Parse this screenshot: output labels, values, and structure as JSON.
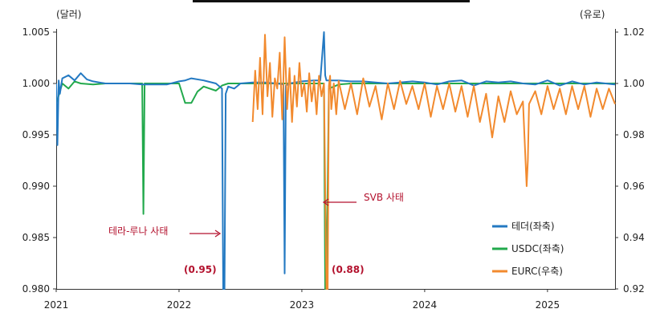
{
  "chart_data": {
    "type": "line",
    "left_unit": "(달러)",
    "right_unit": "(유로)",
    "xlim": [
      2021.0,
      2025.55
    ],
    "x_ticks": [
      "2021",
      "2022",
      "2023",
      "2024",
      "2025"
    ],
    "y_left": {
      "ylim": [
        0.98,
        1.005
      ],
      "ticks": [
        "0.980",
        "0.985",
        "0.990",
        "0.995",
        "1.000",
        "1.005"
      ]
    },
    "y_right": {
      "ylim": [
        0.92,
        1.02
      ],
      "ticks": [
        "0.92",
        "0.94",
        "0.96",
        "0.98",
        "1.00",
        "1.02"
      ]
    },
    "grid": false,
    "legend_position": "bottom-right",
    "series": [
      {
        "name": "테더(좌축)",
        "axis": "left",
        "color": "#2379c2",
        "x": [
          2021.0,
          2021.01,
          2021.02,
          2021.03,
          2021.05,
          2021.1,
          2021.15,
          2021.2,
          2021.25,
          2021.3,
          2021.4,
          2021.5,
          2021.6,
          2021.7,
          2021.8,
          2021.9,
          2022.0,
          2022.05,
          2022.1,
          2022.2,
          2022.3,
          2022.35,
          2022.36,
          2022.37,
          2022.38,
          2022.4,
          2022.45,
          2022.5,
          2022.6,
          2022.7,
          2022.8,
          2022.85,
          2022.86,
          2022.87,
          2022.9,
          2023.0,
          2023.1,
          2023.15,
          2023.18,
          2023.19,
          2023.2,
          2023.3,
          2023.4,
          2023.5,
          2023.6,
          2023.7,
          2023.8,
          2023.9,
          2024.0,
          2024.1,
          2024.2,
          2024.3,
          2024.4,
          2024.5,
          2024.6,
          2024.7,
          2024.8,
          2024.9,
          2025.0,
          2025.1,
          2025.2,
          2025.3,
          2025.4,
          2025.55
        ],
        "y": [
          1.0,
          0.994,
          1.0003,
          0.999,
          1.0005,
          1.0008,
          1.0003,
          1.001,
          1.0004,
          1.0002,
          1.0,
          1.0,
          1.0,
          0.9999,
          0.9999,
          0.9999,
          1.0002,
          1.0003,
          1.0005,
          1.0003,
          1.0,
          0.9995,
          0.98,
          0.98,
          0.999,
          0.9997,
          0.9995,
          1.0,
          1.0001,
          1.0001,
          1.0,
          0.9999,
          0.9815,
          0.9998,
          1.0,
          1.0002,
          1.0003,
          1.0003,
          1.005,
          1.0008,
          1.0003,
          1.0003,
          1.0002,
          1.0002,
          1.0001,
          1.0,
          1.0001,
          1.0002,
          1.0001,
          0.9999,
          1.0002,
          1.0003,
          0.9998,
          1.0002,
          1.0001,
          1.0002,
          1.0,
          0.9999,
          1.0003,
          0.9998,
          1.0002,
          0.9999,
          1.0001,
          0.9999
        ]
      },
      {
        "name": "USDC(좌축)",
        "axis": "left",
        "color": "#22a94c",
        "x": [
          2021.0,
          2021.05,
          2021.1,
          2021.15,
          2021.2,
          2021.3,
          2021.4,
          2021.5,
          2021.6,
          2021.68,
          2021.7,
          2021.71,
          2021.72,
          2021.8,
          2021.9,
          2022.0,
          2022.05,
          2022.1,
          2022.15,
          2022.2,
          2022.3,
          2022.35,
          2022.4,
          2022.5,
          2022.6,
          2022.7,
          2022.8,
          2022.9,
          2023.0,
          2023.1,
          2023.18,
          2023.19,
          2023.2,
          2023.22,
          2023.3,
          2023.4,
          2023.5,
          2023.6,
          2023.7,
          2023.8,
          2023.9,
          2024.0,
          2024.2,
          2024.4,
          2024.6,
          2024.8,
          2025.0,
          2025.2,
          2025.4,
          2025.55
        ],
        "y": [
          0.998,
          1.0,
          0.9995,
          1.0002,
          1.0,
          0.9999,
          1.0,
          1.0,
          1.0,
          1.0,
          1.0,
          0.9873,
          1.0,
          1.0,
          1.0,
          1.0,
          0.9981,
          0.9981,
          0.9992,
          0.9997,
          0.9993,
          0.9998,
          1.0,
          1.0,
          1.0,
          1.0,
          1.0,
          1.0,
          1.0,
          1.0,
          1.0,
          0.98,
          0.98,
          0.9995,
          0.9999,
          1.0,
          1.0,
          1.0,
          1.0,
          1.0,
          1.0,
          1.0,
          1.0,
          1.0,
          1.0,
          1.0,
          1.0,
          1.0,
          1.0,
          1.0
        ]
      },
      {
        "name": "EURC(우축)",
        "axis": "right",
        "color": "#f28a2e",
        "x": [
          2022.6,
          2022.62,
          2022.64,
          2022.66,
          2022.68,
          2022.7,
          2022.72,
          2022.74,
          2022.76,
          2022.78,
          2022.8,
          2022.82,
          2022.84,
          2022.86,
          2022.88,
          2022.9,
          2022.92,
          2022.94,
          2022.96,
          2022.98,
          2023.0,
          2023.02,
          2023.04,
          2023.06,
          2023.08,
          2023.1,
          2023.12,
          2023.14,
          2023.16,
          2023.18,
          2023.2,
          2023.21,
          2023.22,
          2023.23,
          2023.24,
          2023.26,
          2023.28,
          2023.3,
          2023.35,
          2023.4,
          2023.45,
          2023.5,
          2023.55,
          2023.6,
          2023.65,
          2023.7,
          2023.75,
          2023.8,
          2023.85,
          2023.9,
          2023.95,
          2024.0,
          2024.05,
          2024.1,
          2024.15,
          2024.2,
          2024.25,
          2024.3,
          2024.35,
          2024.4,
          2024.45,
          2024.5,
          2024.55,
          2024.6,
          2024.65,
          2024.7,
          2024.75,
          2024.8,
          2024.83,
          2024.84,
          2024.85,
          2024.9,
          2024.95,
          2025.0,
          2025.05,
          2025.1,
          2025.15,
          2025.2,
          2025.25,
          2025.3,
          2025.35,
          2025.4,
          2025.45,
          2025.5,
          2025.55
        ],
        "y": [
          0.985,
          1.005,
          0.99,
          1.01,
          0.988,
          1.019,
          0.995,
          1.008,
          0.987,
          1.002,
          0.998,
          1.012,
          0.986,
          1.018,
          0.99,
          1.006,
          0.985,
          1.003,
          0.991,
          1.008,
          0.995,
          1.0,
          0.989,
          1.004,
          0.993,
          1.001,
          0.988,
          1.003,
          0.995,
          1.0,
          0.92,
          0.92,
          0.999,
          1.003,
          0.99,
          1.0,
          0.988,
          1.001,
          0.99,
          1.0,
          0.988,
          1.002,
          0.991,
          0.999,
          0.986,
          1.0,
          0.99,
          1.001,
          0.992,
          0.999,
          0.99,
          1.0,
          0.987,
          0.999,
          0.99,
          1.0,
          0.989,
          0.999,
          0.987,
          0.999,
          0.985,
          0.996,
          0.979,
          0.995,
          0.985,
          0.997,
          0.988,
          0.993,
          0.96,
          0.97,
          0.992,
          0.997,
          0.988,
          0.999,
          0.99,
          0.998,
          0.988,
          0.999,
          0.99,
          0.999,
          0.987,
          0.998,
          0.99,
          0.998,
          0.992
        ]
      }
    ],
    "annotations": [
      {
        "text": "테라-루나 사태",
        "id": "terra"
      },
      {
        "text": "(0.95)",
        "id": "terra-value"
      },
      {
        "text": "SVB 사태",
        "id": "svb"
      },
      {
        "text": "(0.88)",
        "id": "svb-value"
      }
    ]
  }
}
